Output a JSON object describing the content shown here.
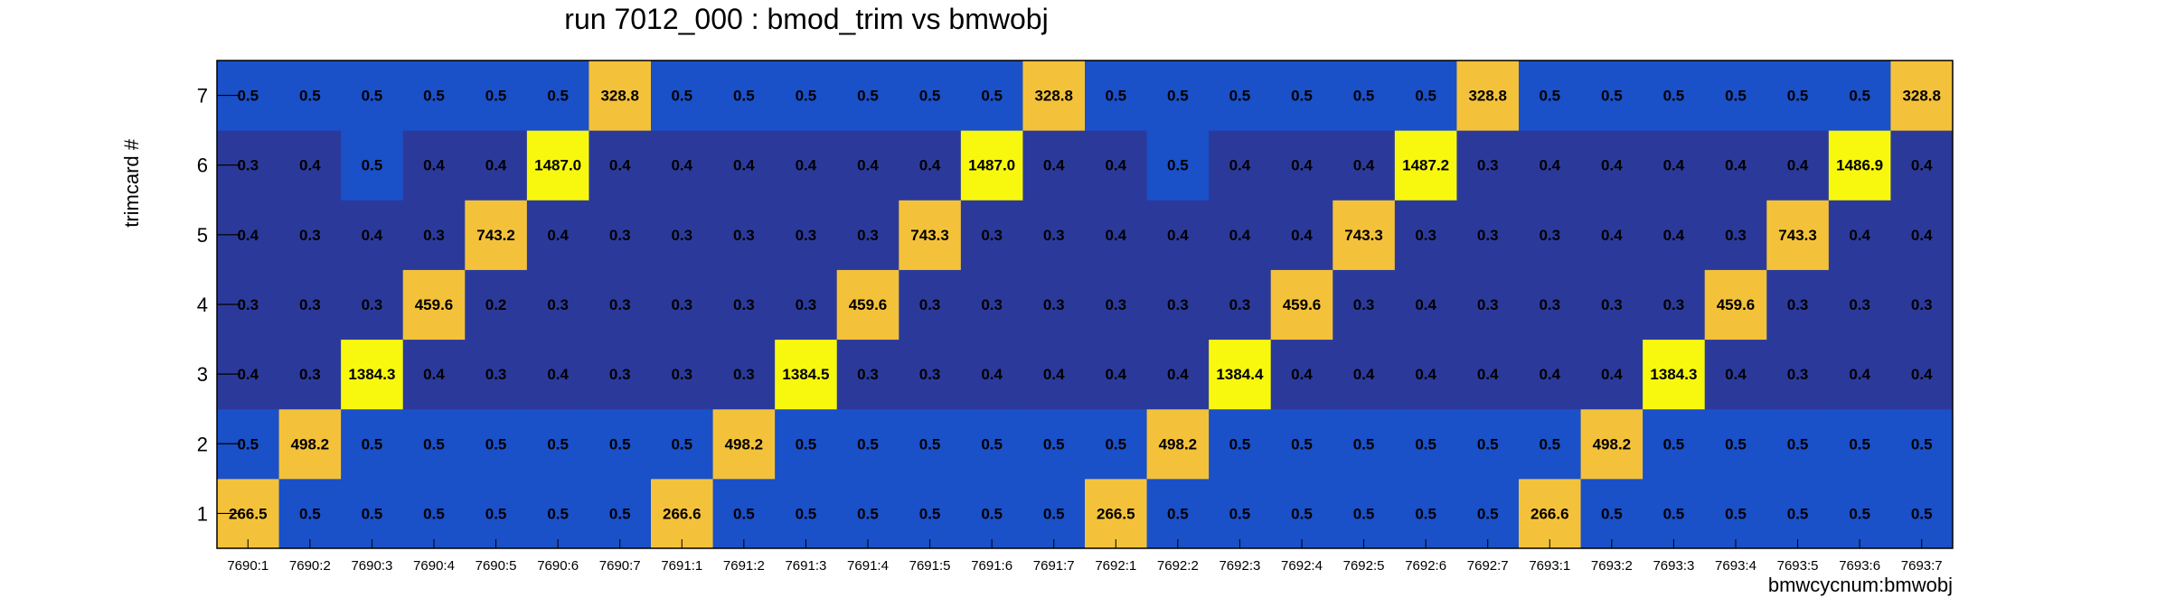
{
  "chart_data": {
    "type": "heatmap",
    "title": "run 7012_000 : bmod_trim vs bmwobj",
    "xlabel": "bmwcycnum:bmwobj",
    "ylabel": "trimcard #",
    "x_categories": [
      "7690:1",
      "7690:2",
      "7690:3",
      "7690:4",
      "7690:5",
      "7690:6",
      "7690:7",
      "7691:1",
      "7691:2",
      "7691:3",
      "7691:4",
      "7691:5",
      "7691:6",
      "7691:7",
      "7692:1",
      "7692:2",
      "7692:3",
      "7692:4",
      "7692:5",
      "7692:6",
      "7692:7",
      "7693:1",
      "7693:2",
      "7693:3",
      "7693:4",
      "7693:5",
      "7693:6",
      "7693:7"
    ],
    "y_categories": [
      "1",
      "2",
      "3",
      "4",
      "5",
      "6",
      "7"
    ],
    "values": [
      [
        "266.5",
        "0.5",
        "0.5",
        "0.5",
        "0.5",
        "0.5",
        "0.5",
        "266.6",
        "0.5",
        "0.5",
        "0.5",
        "0.5",
        "0.5",
        "0.5",
        "266.5",
        "0.5",
        "0.5",
        "0.5",
        "0.5",
        "0.5",
        "0.5",
        "266.6",
        "0.5",
        "0.5",
        "0.5",
        "0.5",
        "0.5",
        "0.5"
      ],
      [
        "0.5",
        "498.2",
        "0.5",
        "0.5",
        "0.5",
        "0.5",
        "0.5",
        "0.5",
        "498.2",
        "0.5",
        "0.5",
        "0.5",
        "0.5",
        "0.5",
        "0.5",
        "498.2",
        "0.5",
        "0.5",
        "0.5",
        "0.5",
        "0.5",
        "0.5",
        "498.2",
        "0.5",
        "0.5",
        "0.5",
        "0.5",
        "0.5"
      ],
      [
        "0.4",
        "0.3",
        "1384.3",
        "0.4",
        "0.3",
        "0.4",
        "0.3",
        "0.3",
        "0.3",
        "1384.5",
        "0.3",
        "0.3",
        "0.4",
        "0.4",
        "0.4",
        "0.4",
        "1384.4",
        "0.4",
        "0.4",
        "0.4",
        "0.4",
        "0.4",
        "0.4",
        "1384.3",
        "0.4",
        "0.3",
        "0.4",
        "0.4"
      ],
      [
        "0.3",
        "0.3",
        "0.3",
        "459.6",
        "0.2",
        "0.3",
        "0.3",
        "0.3",
        "0.3",
        "0.3",
        "459.6",
        "0.3",
        "0.3",
        "0.3",
        "0.3",
        "0.3",
        "0.3",
        "459.6",
        "0.3",
        "0.4",
        "0.3",
        "0.3",
        "0.3",
        "0.3",
        "459.6",
        "0.3",
        "0.3",
        "0.3"
      ],
      [
        "0.4",
        "0.3",
        "0.4",
        "0.3",
        "743.2",
        "0.4",
        "0.3",
        "0.3",
        "0.3",
        "0.3",
        "0.3",
        "743.3",
        "0.3",
        "0.3",
        "0.4",
        "0.4",
        "0.4",
        "0.4",
        "743.3",
        "0.3",
        "0.3",
        "0.3",
        "0.4",
        "0.4",
        "0.3",
        "743.3",
        "0.4",
        "0.4"
      ],
      [
        "0.3",
        "0.4",
        "0.5",
        "0.4",
        "0.4",
        "1487.0",
        "0.4",
        "0.4",
        "0.4",
        "0.4",
        "0.4",
        "0.4",
        "1487.0",
        "0.4",
        "0.4",
        "0.5",
        "0.4",
        "0.4",
        "0.4",
        "1487.2",
        "0.3",
        "0.4",
        "0.4",
        "0.4",
        "0.4",
        "0.4",
        "1486.9",
        "0.4"
      ],
      [
        "0.5",
        "0.5",
        "0.5",
        "0.5",
        "0.5",
        "0.5",
        "328.8",
        "0.5",
        "0.5",
        "0.5",
        "0.5",
        "0.5",
        "0.5",
        "328.8",
        "0.5",
        "0.5",
        "0.5",
        "0.5",
        "0.5",
        "0.5",
        "328.8",
        "0.5",
        "0.5",
        "0.5",
        "0.5",
        "0.5",
        "0.5",
        "328.8"
      ]
    ],
    "colors": {
      "low": "#2b3a9a",
      "mid_low": "#1a50c8",
      "mid_high": "#f4c23a",
      "high": "#f8f80e"
    },
    "grid": false
  }
}
